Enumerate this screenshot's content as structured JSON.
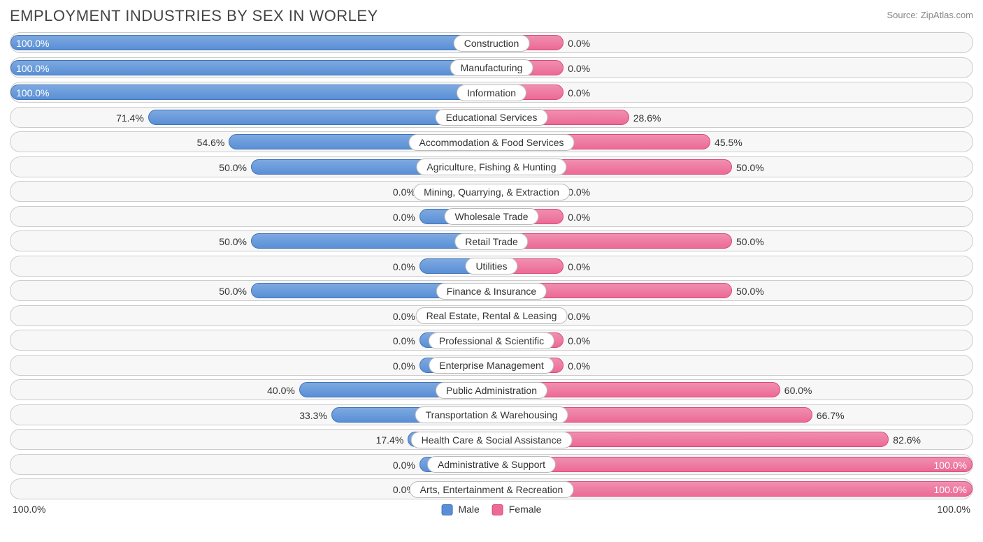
{
  "title": "EMPLOYMENT INDUSTRIES BY SEX IN WORLEY",
  "source": "Source: ZipAtlas.com",
  "chart": {
    "type": "diverging-bar",
    "male_color": "#5a8fd6",
    "male_border": "#3f72b8",
    "female_color": "#ec6a96",
    "female_border": "#d84a7a",
    "row_bg": "#f7f7f7",
    "row_border": "#cccccc",
    "label_bg": "#ffffff",
    "text_color": "#333333",
    "min_bar_pct": 15,
    "rows": [
      {
        "label": "Construction",
        "male": 100.0,
        "female": 0.0,
        "male_txt": "100.0%",
        "female_txt": "0.0%"
      },
      {
        "label": "Manufacturing",
        "male": 100.0,
        "female": 0.0,
        "male_txt": "100.0%",
        "female_txt": "0.0%"
      },
      {
        "label": "Information",
        "male": 100.0,
        "female": 0.0,
        "male_txt": "100.0%",
        "female_txt": "0.0%"
      },
      {
        "label": "Educational Services",
        "male": 71.4,
        "female": 28.6,
        "male_txt": "71.4%",
        "female_txt": "28.6%"
      },
      {
        "label": "Accommodation & Food Services",
        "male": 54.6,
        "female": 45.5,
        "male_txt": "54.6%",
        "female_txt": "45.5%"
      },
      {
        "label": "Agriculture, Fishing & Hunting",
        "male": 50.0,
        "female": 50.0,
        "male_txt": "50.0%",
        "female_txt": "50.0%"
      },
      {
        "label": "Mining, Quarrying, & Extraction",
        "male": 0.0,
        "female": 0.0,
        "male_txt": "0.0%",
        "female_txt": "0.0%"
      },
      {
        "label": "Wholesale Trade",
        "male": 0.0,
        "female": 0.0,
        "male_txt": "0.0%",
        "female_txt": "0.0%"
      },
      {
        "label": "Retail Trade",
        "male": 50.0,
        "female": 50.0,
        "male_txt": "50.0%",
        "female_txt": "50.0%"
      },
      {
        "label": "Utilities",
        "male": 0.0,
        "female": 0.0,
        "male_txt": "0.0%",
        "female_txt": "0.0%"
      },
      {
        "label": "Finance & Insurance",
        "male": 50.0,
        "female": 50.0,
        "male_txt": "50.0%",
        "female_txt": "50.0%"
      },
      {
        "label": "Real Estate, Rental & Leasing",
        "male": 0.0,
        "female": 0.0,
        "male_txt": "0.0%",
        "female_txt": "0.0%"
      },
      {
        "label": "Professional & Scientific",
        "male": 0.0,
        "female": 0.0,
        "male_txt": "0.0%",
        "female_txt": "0.0%"
      },
      {
        "label": "Enterprise Management",
        "male": 0.0,
        "female": 0.0,
        "male_txt": "0.0%",
        "female_txt": "0.0%"
      },
      {
        "label": "Public Administration",
        "male": 40.0,
        "female": 60.0,
        "male_txt": "40.0%",
        "female_txt": "60.0%"
      },
      {
        "label": "Transportation & Warehousing",
        "male": 33.3,
        "female": 66.7,
        "male_txt": "33.3%",
        "female_txt": "66.7%"
      },
      {
        "label": "Health Care & Social Assistance",
        "male": 17.4,
        "female": 82.6,
        "male_txt": "17.4%",
        "female_txt": "82.6%"
      },
      {
        "label": "Administrative & Support",
        "male": 0.0,
        "female": 100.0,
        "male_txt": "0.0%",
        "female_txt": "100.0%"
      },
      {
        "label": "Arts, Entertainment & Recreation",
        "male": 0.0,
        "female": 100.0,
        "male_txt": "0.0%",
        "female_txt": "100.0%"
      }
    ]
  },
  "legend": {
    "male": "Male",
    "female": "Female"
  },
  "axis": {
    "left": "100.0%",
    "right": "100.0%"
  }
}
